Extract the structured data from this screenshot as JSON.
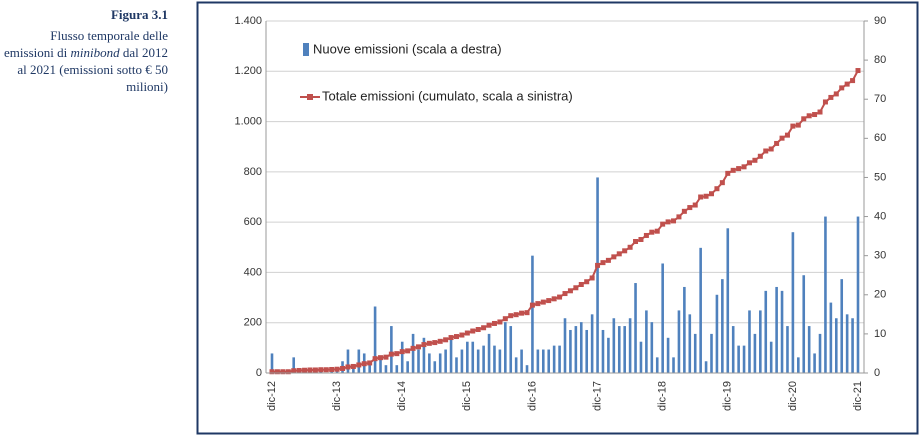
{
  "figure": {
    "label": "Figura 3.1",
    "caption_start": "Flusso temporale delle emissioni di",
    "caption_italic": "minibond",
    "caption_end": "dal 2012 al 2021 (emissioni sotto € 50 milioni)"
  },
  "chart_data": {
    "type": "bar-line",
    "categories": [
      "dic-12",
      null,
      null,
      null,
      null,
      null,
      null,
      null,
      null,
      null,
      null,
      null,
      "dic-13",
      null,
      null,
      null,
      null,
      null,
      null,
      null,
      null,
      null,
      null,
      null,
      "dic-14",
      null,
      null,
      null,
      null,
      null,
      null,
      null,
      null,
      null,
      null,
      null,
      "dic-15",
      null,
      null,
      null,
      null,
      null,
      null,
      null,
      null,
      null,
      null,
      null,
      "dic-16",
      null,
      null,
      null,
      null,
      null,
      null,
      null,
      null,
      null,
      null,
      null,
      "dic-17",
      null,
      null,
      null,
      null,
      null,
      null,
      null,
      null,
      null,
      null,
      null,
      "dic-18",
      null,
      null,
      null,
      null,
      null,
      null,
      null,
      null,
      null,
      null,
      null,
      "dic-19",
      null,
      null,
      null,
      null,
      null,
      null,
      null,
      null,
      null,
      null,
      null,
      "dic-20",
      null,
      null,
      null,
      null,
      null,
      null,
      null,
      null,
      null,
      null,
      null,
      "dic-21"
    ],
    "series": [
      {
        "name": "Nuove emissioni (scala a destra)",
        "color": "#4f81bd",
        "axis": "y2",
        "values": [
          5,
          0,
          0,
          0,
          4,
          1,
          1,
          1,
          0,
          1,
          0,
          1,
          1,
          3,
          6,
          2,
          6,
          5,
          3,
          17,
          4,
          2,
          12,
          2,
          8,
          3,
          10,
          6,
          9,
          5,
          3,
          5,
          6,
          9,
          4,
          6,
          8,
          8,
          6,
          7,
          10,
          7,
          6,
          13,
          12,
          4,
          6,
          2,
          30,
          6,
          6,
          6,
          7,
          7,
          14,
          11,
          12,
          13,
          11,
          15,
          50,
          11,
          9,
          14,
          12,
          12,
          14,
          23,
          8,
          16,
          13,
          4,
          28,
          9,
          4,
          16,
          22,
          15,
          10,
          32,
          3,
          10,
          20,
          24,
          37,
          12,
          7,
          7,
          16,
          10,
          16,
          21,
          8,
          22,
          21,
          12,
          36,
          4,
          25,
          12,
          5,
          10,
          40,
          18,
          14,
          24,
          15,
          14,
          40
        ]
      },
      {
        "name": "Totale emissioni (cumulato, scala a sinistra)",
        "color": "#c0504d",
        "axis": "y",
        "values": [
          5,
          5,
          5,
          5,
          9,
          10,
          11,
          12,
          12,
          13,
          13,
          14,
          15,
          18,
          24,
          26,
          32,
          37,
          40,
          57,
          61,
          63,
          75,
          77,
          85,
          88,
          98,
          104,
          113,
          118,
          121,
          126,
          132,
          141,
          145,
          151,
          159,
          167,
          173,
          180,
          190,
          197,
          203,
          216,
          228,
          232,
          238,
          240,
          270,
          276,
          282,
          288,
          295,
          302,
          316,
          327,
          339,
          352,
          363,
          378,
          428,
          439,
          448,
          462,
          474,
          486,
          500,
          523,
          531,
          547,
          560,
          564,
          592,
          601,
          605,
          621,
          643,
          658,
          668,
          700,
          703,
          713,
          733,
          757,
          794,
          806,
          813,
          820,
          836,
          846,
          862,
          883,
          891,
          913,
          934,
          946,
          982,
          986,
          1011,
          1023,
          1028,
          1038,
          1078,
          1096,
          1110,
          1134,
          1149,
          1163,
          1203
        ]
      }
    ],
    "ylim": [
      0,
      1400
    ],
    "yticks": [
      0,
      200,
      400,
      600,
      800,
      {
        "value": 1000,
        "label": "1.000"
      },
      {
        "value": 1200,
        "label": "1.200"
      },
      {
        "value": 1400,
        "label": "1.400"
      }
    ],
    "y2lim": [
      0,
      90
    ],
    "y2ticks": [
      0,
      10,
      20,
      30,
      40,
      50,
      60,
      70,
      80,
      90
    ],
    "grid": true,
    "frame_color": "#1f3864"
  }
}
